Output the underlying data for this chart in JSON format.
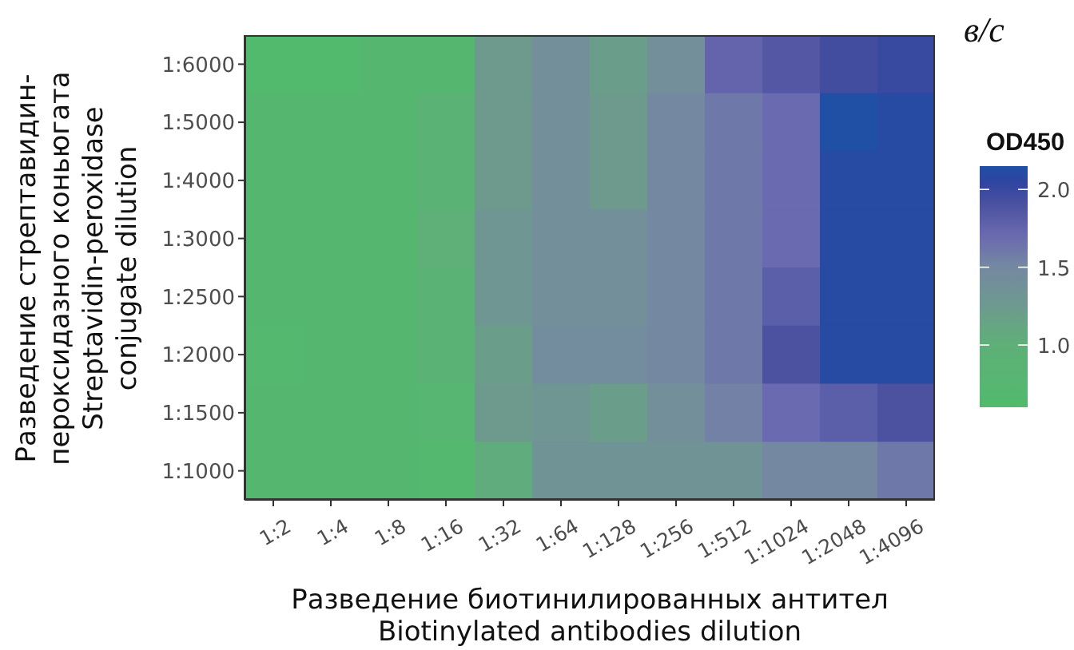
{
  "chart_data": {
    "type": "heatmap",
    "xlabel": "Разведение биотинилированных антител\nBiotinylated antibodies dilution",
    "ylabel": "Разведение стрептавидин-\nпероксидазного коньюгата\nStreptavidin-peroxidase\nconjugate dilution",
    "clabel": "OD450",
    "annotations": [
      "в/с"
    ],
    "categories": [
      "1:2",
      "1:4",
      "1:8",
      "1:16",
      "1:32",
      "1:64",
      "1:128",
      "1:256",
      "1:512",
      "1:1024",
      "1:2048",
      "1:4096"
    ],
    "y_categories": [
      "1:6000",
      "1:5000",
      "1:4000",
      "1:3000",
      "1:2500",
      "1:2000",
      "1:1500",
      "1:1000"
    ],
    "cells": [
      [
        0.6,
        0.6,
        0.7,
        0.7,
        1.25,
        1.4,
        1.2,
        1.4,
        1.75,
        1.85,
        1.95,
        2.0
      ],
      [
        0.7,
        0.7,
        0.7,
        0.9,
        1.25,
        1.4,
        1.25,
        1.5,
        1.6,
        1.7,
        2.15,
        2.1
      ],
      [
        0.7,
        0.7,
        0.7,
        0.9,
        1.25,
        1.4,
        1.25,
        1.5,
        1.6,
        1.7,
        2.1,
        2.1
      ],
      [
        0.7,
        0.7,
        0.7,
        1.0,
        1.3,
        1.4,
        1.4,
        1.5,
        1.6,
        1.7,
        2.1,
        2.1
      ],
      [
        0.7,
        0.7,
        0.7,
        0.9,
        1.3,
        1.4,
        1.4,
        1.5,
        1.6,
        1.8,
        2.1,
        2.1
      ],
      [
        0.65,
        0.7,
        0.7,
        0.9,
        1.2,
        1.45,
        1.45,
        1.5,
        1.6,
        1.9,
        2.1,
        2.1
      ],
      [
        0.7,
        0.7,
        0.7,
        0.75,
        1.25,
        1.3,
        1.2,
        1.4,
        1.55,
        1.7,
        1.8,
        1.9
      ],
      [
        0.7,
        0.7,
        0.7,
        0.65,
        1.05,
        1.35,
        1.35,
        1.35,
        1.35,
        1.5,
        1.5,
        1.6
      ]
    ],
    "clim": [
      0.6,
      2.15
    ],
    "cticks": [
      {
        "value": 1,
        "label": "1.0"
      },
      {
        "value": 1.5,
        "label": "1.5"
      },
      {
        "value": 2,
        "label": "2.0"
      }
    ]
  }
}
